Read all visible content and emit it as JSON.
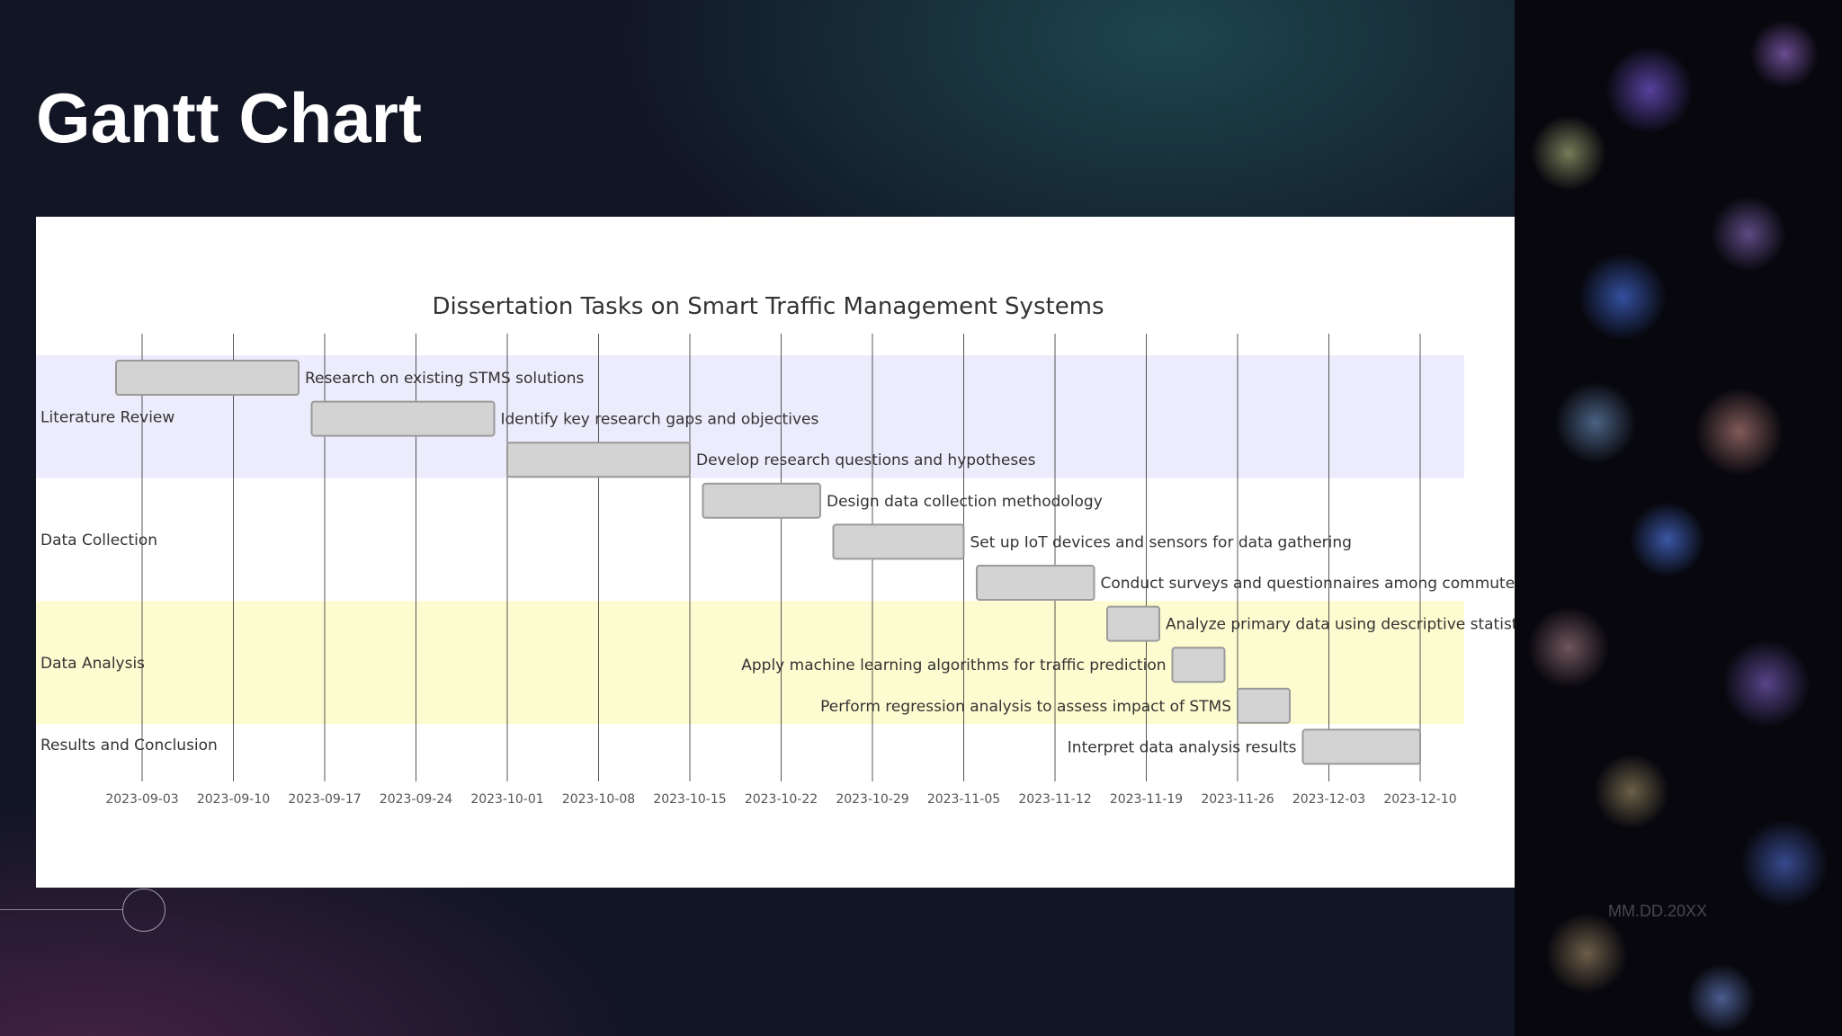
{
  "slide": {
    "title": "Gantt Chart",
    "date_placeholder": "MM.DD.20XX"
  },
  "colors": {
    "section_band_1": "#ececfd",
    "section_band_2": "#ffffff",
    "section_band_3": "#fdfcd0",
    "bar_fill": "#d3d3d3",
    "bar_stroke": "#9a9a9a",
    "grid": "#3a3a3a",
    "text": "#333333"
  },
  "chart_data": {
    "type": "gantt",
    "title": "Dissertation Tasks on Smart Traffic Management Systems",
    "x_axis": {
      "range": [
        "2023-08-29",
        "2023-12-13"
      ],
      "ticks": [
        "2023-09-03",
        "2023-09-10",
        "2023-09-17",
        "2023-09-24",
        "2023-10-01",
        "2023-10-08",
        "2023-10-15",
        "2023-10-22",
        "2023-10-29",
        "2023-11-05",
        "2023-11-12",
        "2023-11-19",
        "2023-11-26",
        "2023-12-03",
        "2023-12-10"
      ]
    },
    "grid": true,
    "sections": [
      {
        "name": "Literature Review",
        "band": "section_band_1",
        "first_task": 0,
        "last_task": 2
      },
      {
        "name": "Data Collection",
        "band": "section_band_2",
        "first_task": 3,
        "last_task": 5
      },
      {
        "name": "Data Analysis",
        "band": "section_band_3",
        "first_task": 6,
        "last_task": 8
      },
      {
        "name": "Results and Conclusion",
        "band": "section_band_2",
        "first_task": 9,
        "last_task": 9
      }
    ],
    "tasks": [
      {
        "name": "Research on existing STMS solutions",
        "start": "2023-09-01",
        "end": "2023-09-15",
        "label_side": "right"
      },
      {
        "name": "Identify key research gaps and objectives",
        "start": "2023-09-16",
        "end": "2023-09-30",
        "label_side": "right"
      },
      {
        "name": "Develop research questions and hypotheses",
        "start": "2023-10-01",
        "end": "2023-10-15",
        "label_side": "right"
      },
      {
        "name": "Design data collection methodology",
        "start": "2023-10-16",
        "end": "2023-10-25",
        "label_side": "right"
      },
      {
        "name": "Set up IoT devices and sensors for data gathering",
        "start": "2023-10-26",
        "end": "2023-11-05",
        "label_side": "right"
      },
      {
        "name": "Conduct surveys and questionnaires among commuters",
        "start": "2023-11-06",
        "end": "2023-11-15",
        "label_side": "right"
      },
      {
        "name": "Analyze primary data using descriptive statistics",
        "start": "2023-11-16",
        "end": "2023-11-20",
        "label_side": "right"
      },
      {
        "name": "Apply machine learning algorithms for traffic prediction",
        "start": "2023-11-21",
        "end": "2023-11-25",
        "label_side": "left"
      },
      {
        "name": "Perform regression analysis to assess impact of STMS",
        "start": "2023-11-26",
        "end": "2023-11-30",
        "label_side": "left"
      },
      {
        "name": "Interpret data analysis results",
        "start": "2023-12-01",
        "end": "2023-12-10",
        "label_side": "left"
      }
    ]
  }
}
